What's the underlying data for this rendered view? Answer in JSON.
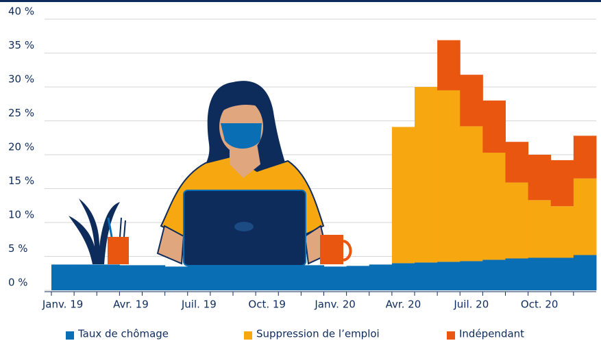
{
  "chart_data": {
    "type": "stacked-step",
    "categories": [
      "Janv. 19",
      null,
      null,
      "Avr. 19",
      null,
      null,
      "Juil. 19",
      null,
      null,
      "Oct. 19",
      null,
      null,
      "Janv. 20",
      null,
      null,
      "Avr. 20",
      null,
      null,
      "Juil. 20",
      null,
      null,
      "Oct. 20",
      null,
      null
    ],
    "series": [
      {
        "name": "Taux de chômage",
        "color": "#0a6eb4",
        "values": [
          3.8,
          3.8,
          3.8,
          3.7,
          3.7,
          3.5,
          3.7,
          3.8,
          3.8,
          3.7,
          3.7,
          3.7,
          3.5,
          3.6,
          3.8,
          4.0,
          4.1,
          4.2,
          4.3,
          4.5,
          4.7,
          4.8,
          4.8,
          5.2
        ]
      },
      {
        "name": "Suppression de l’emploi",
        "color": "#f7a70f",
        "values": [
          0,
          0,
          0,
          0,
          0,
          0,
          0,
          0,
          0,
          0,
          0,
          0,
          0,
          0,
          0,
          20.1,
          25.9,
          25.3,
          19.9,
          15.8,
          11.2,
          8.5,
          7.6,
          11.3
        ]
      },
      {
        "name": "Indépendant",
        "color": "#e8560f",
        "values": [
          0,
          0,
          0,
          0,
          0,
          0,
          0,
          0,
          0,
          0,
          0,
          0,
          0,
          0,
          0,
          0,
          0,
          7.4,
          7.6,
          7.7,
          6.0,
          6.7,
          6.8,
          6.3
        ]
      }
    ],
    "ylim": [
      0,
      40
    ],
    "yticks": [
      {
        "value": 0,
        "label": "0 %"
      },
      {
        "value": 5,
        "label": "5 %"
      },
      {
        "value": 10,
        "label": "10 %"
      },
      {
        "value": 15,
        "label": "15 %"
      },
      {
        "value": 20,
        "label": "20 %"
      },
      {
        "value": 25,
        "label": "25 %"
      },
      {
        "value": 30,
        "label": "30 %"
      },
      {
        "value": 35,
        "label": "35 %"
      },
      {
        "value": 40,
        "label": "40 %"
      }
    ],
    "grid": true
  }
}
